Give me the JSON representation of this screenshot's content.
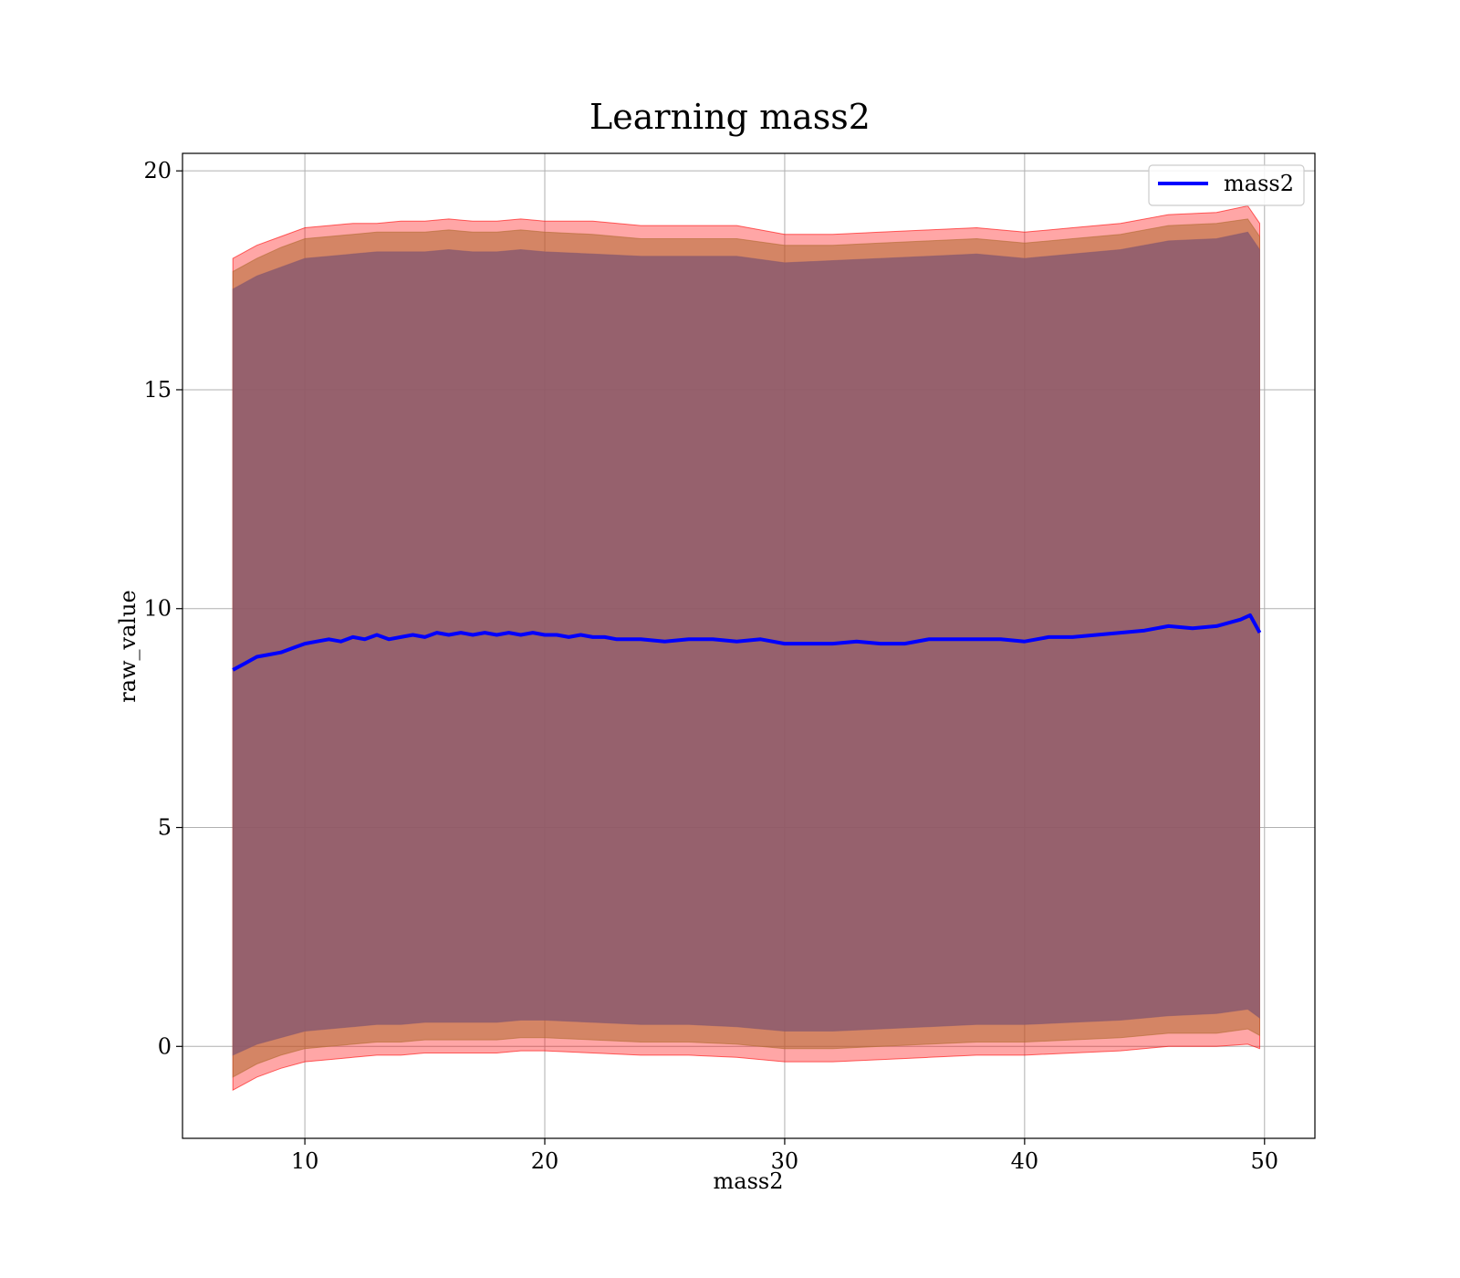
{
  "chart_data": {
    "type": "line",
    "title": "Learning mass2",
    "xlabel": "mass2",
    "ylabel": "raw_value",
    "xlim": [
      4.9,
      52.1
    ],
    "ylim": [
      -2.1,
      20.4
    ],
    "xticks": [
      10,
      20,
      30,
      40,
      50
    ],
    "yticks": [
      0,
      5,
      10,
      15,
      20
    ],
    "grid": true,
    "legend_position": "top-right",
    "series": [
      {
        "name": "mass2",
        "color": "#0000ff",
        "x": [
          7.0,
          7.5,
          8.0,
          8.5,
          9.0,
          9.5,
          10.0,
          10.5,
          11.0,
          11.5,
          12.0,
          12.5,
          13.0,
          13.5,
          14.0,
          14.5,
          15.0,
          15.5,
          16.0,
          16.5,
          17.0,
          17.5,
          18.0,
          18.5,
          19.0,
          19.5,
          20.0,
          20.5,
          21.0,
          21.5,
          22.0,
          22.5,
          23.0,
          24.0,
          25.0,
          26.0,
          27.0,
          28.0,
          29.0,
          30.0,
          31.0,
          32.0,
          33.0,
          34.0,
          35.0,
          36.0,
          37.0,
          38.0,
          39.0,
          40.0,
          41.0,
          42.0,
          43.0,
          44.0,
          45.0,
          46.0,
          47.0,
          48.0,
          49.0,
          49.4,
          49.8
        ],
        "y": [
          8.6,
          8.75,
          8.9,
          8.95,
          9.0,
          9.1,
          9.2,
          9.25,
          9.3,
          9.25,
          9.35,
          9.3,
          9.4,
          9.3,
          9.35,
          9.4,
          9.35,
          9.45,
          9.4,
          9.45,
          9.4,
          9.45,
          9.4,
          9.45,
          9.4,
          9.45,
          9.4,
          9.4,
          9.35,
          9.4,
          9.35,
          9.35,
          9.3,
          9.3,
          9.25,
          9.3,
          9.3,
          9.25,
          9.3,
          9.2,
          9.2,
          9.2,
          9.25,
          9.2,
          9.2,
          9.3,
          9.3,
          9.3,
          9.3,
          9.25,
          9.35,
          9.35,
          9.4,
          9.45,
          9.5,
          9.6,
          9.55,
          9.6,
          9.75,
          9.85,
          9.45
        ]
      }
    ],
    "bands": [
      {
        "kind": "outer",
        "color": "#ff0000",
        "opacity": 0.35,
        "x": [
          7.0,
          8.0,
          9.0,
          10.0,
          11.0,
          12.0,
          13.0,
          14.0,
          15.0,
          16.0,
          17.0,
          18.0,
          19.0,
          20.0,
          22.0,
          24.0,
          26.0,
          28.0,
          30.0,
          32.0,
          34.0,
          36.0,
          38.0,
          40.0,
          42.0,
          44.0,
          46.0,
          48.0,
          49.3,
          49.8
        ],
        "upper": [
          18.0,
          18.3,
          18.5,
          18.7,
          18.75,
          18.8,
          18.8,
          18.85,
          18.85,
          18.9,
          18.85,
          18.85,
          18.9,
          18.85,
          18.85,
          18.75,
          18.75,
          18.75,
          18.55,
          18.55,
          18.6,
          18.65,
          18.7,
          18.6,
          18.7,
          18.8,
          19.0,
          19.05,
          19.2,
          18.8
        ],
        "lower": [
          -1.0,
          -0.7,
          -0.5,
          -0.35,
          -0.3,
          -0.25,
          -0.2,
          -0.2,
          -0.15,
          -0.15,
          -0.15,
          -0.15,
          -0.1,
          -0.1,
          -0.15,
          -0.2,
          -0.2,
          -0.25,
          -0.35,
          -0.35,
          -0.3,
          -0.25,
          -0.2,
          -0.2,
          -0.15,
          -0.1,
          0.0,
          0.0,
          0.05,
          -0.05
        ]
      },
      {
        "kind": "middle",
        "color": "#b06a30",
        "opacity": 0.55,
        "x": [
          7.0,
          8.0,
          9.0,
          10.0,
          11.0,
          12.0,
          13.0,
          14.0,
          15.0,
          16.0,
          17.0,
          18.0,
          19.0,
          20.0,
          22.0,
          24.0,
          26.0,
          28.0,
          30.0,
          32.0,
          34.0,
          36.0,
          38.0,
          40.0,
          42.0,
          44.0,
          46.0,
          48.0,
          49.3,
          49.8
        ],
        "upper": [
          17.7,
          18.0,
          18.25,
          18.45,
          18.5,
          18.55,
          18.6,
          18.6,
          18.6,
          18.65,
          18.6,
          18.6,
          18.65,
          18.6,
          18.55,
          18.45,
          18.45,
          18.45,
          18.3,
          18.3,
          18.35,
          18.4,
          18.45,
          18.35,
          18.45,
          18.55,
          18.75,
          18.8,
          18.9,
          18.5
        ],
        "lower": [
          -0.7,
          -0.4,
          -0.2,
          -0.05,
          0.0,
          0.05,
          0.1,
          0.1,
          0.15,
          0.15,
          0.15,
          0.15,
          0.2,
          0.2,
          0.15,
          0.1,
          0.1,
          0.05,
          -0.05,
          -0.05,
          0.0,
          0.05,
          0.1,
          0.1,
          0.15,
          0.2,
          0.3,
          0.3,
          0.4,
          0.25
        ]
      },
      {
        "kind": "inner",
        "color": "#8b5a6e",
        "opacity": 0.85,
        "x": [
          7.0,
          8.0,
          9.0,
          10.0,
          11.0,
          12.0,
          13.0,
          14.0,
          15.0,
          16.0,
          17.0,
          18.0,
          19.0,
          20.0,
          22.0,
          24.0,
          26.0,
          28.0,
          30.0,
          32.0,
          34.0,
          36.0,
          38.0,
          40.0,
          42.0,
          44.0,
          46.0,
          48.0,
          49.3,
          49.8
        ],
        "upper": [
          17.3,
          17.6,
          17.8,
          18.0,
          18.05,
          18.1,
          18.15,
          18.15,
          18.15,
          18.2,
          18.15,
          18.15,
          18.2,
          18.15,
          18.1,
          18.05,
          18.05,
          18.05,
          17.9,
          17.95,
          18.0,
          18.05,
          18.1,
          18.0,
          18.1,
          18.2,
          18.4,
          18.45,
          18.6,
          18.2
        ],
        "lower": [
          -0.2,
          0.05,
          0.2,
          0.35,
          0.4,
          0.45,
          0.5,
          0.5,
          0.55,
          0.55,
          0.55,
          0.55,
          0.6,
          0.6,
          0.55,
          0.5,
          0.5,
          0.45,
          0.35,
          0.35,
          0.4,
          0.45,
          0.5,
          0.5,
          0.55,
          0.6,
          0.7,
          0.75,
          0.85,
          0.65
        ]
      }
    ]
  }
}
